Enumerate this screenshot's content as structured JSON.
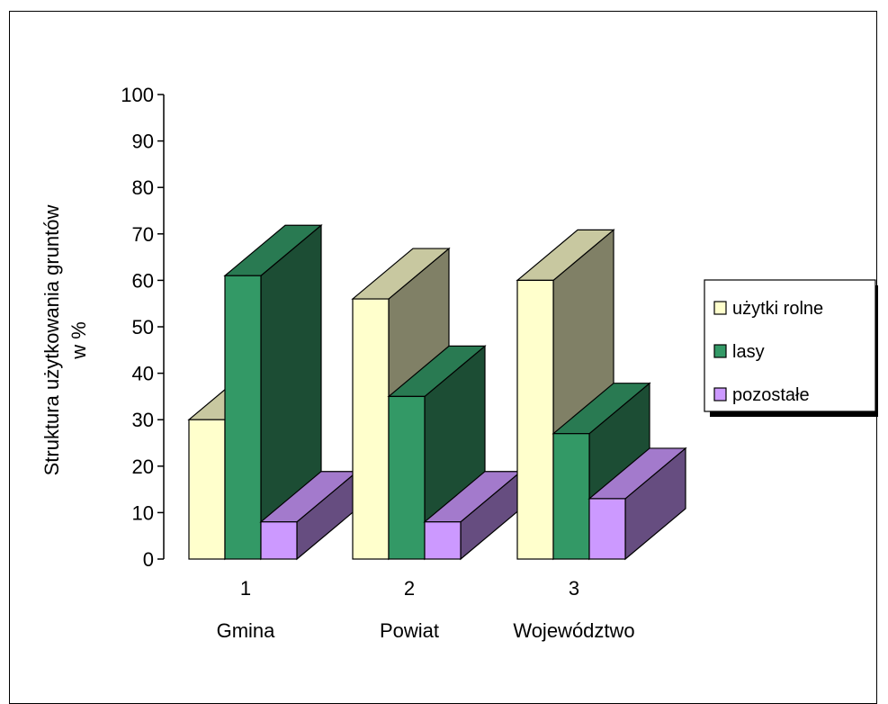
{
  "chart_data": {
    "type": "bar",
    "style": "3d-clustered-column",
    "ylabel_lines": [
      "Struktura użytkowania gruntów",
      "w %"
    ],
    "xlabel": "",
    "ylim": [
      0,
      100
    ],
    "yticks": [
      0,
      10,
      20,
      30,
      40,
      50,
      60,
      70,
      80,
      90,
      100
    ],
    "categories": [
      "1",
      "2",
      "3"
    ],
    "category_names": [
      "Gmina",
      "Powiat",
      "Województwo"
    ],
    "series": [
      {
        "name": "użytki rolne",
        "values": [
          30,
          56,
          60
        ],
        "color": "#ffffcc",
        "top_color": "#c8c8a0",
        "side_color": "#808066"
      },
      {
        "name": "lasy",
        "values": [
          61,
          35,
          27
        ],
        "color": "#339966",
        "top_color": "#297a52",
        "side_color": "#1c4d34"
      },
      {
        "name": "pozostałe",
        "values": [
          8,
          8,
          13
        ],
        "color": "#cc99ff",
        "top_color": "#a37acc",
        "side_color": "#664d80"
      }
    ],
    "legend_position": "right",
    "grid": false
  }
}
